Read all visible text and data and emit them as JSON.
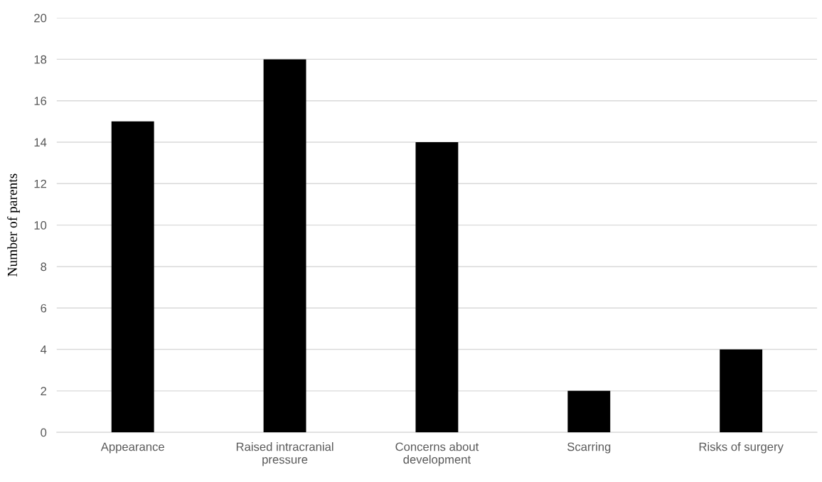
{
  "chart_data": {
    "type": "bar",
    "ylabel": "Number of parents",
    "categories": [
      "Appearance",
      "Raised intracranial\npressure",
      "Concerns about\ndevelopment",
      "Scarring",
      "Risks of surgery"
    ],
    "values": [
      15,
      18,
      14,
      2,
      4
    ],
    "color": "#000000",
    "ylim": [
      0,
      20
    ],
    "yticks": [
      0,
      2,
      4,
      6,
      8,
      10,
      12,
      14,
      16,
      18,
      20
    ],
    "grid": "y"
  }
}
